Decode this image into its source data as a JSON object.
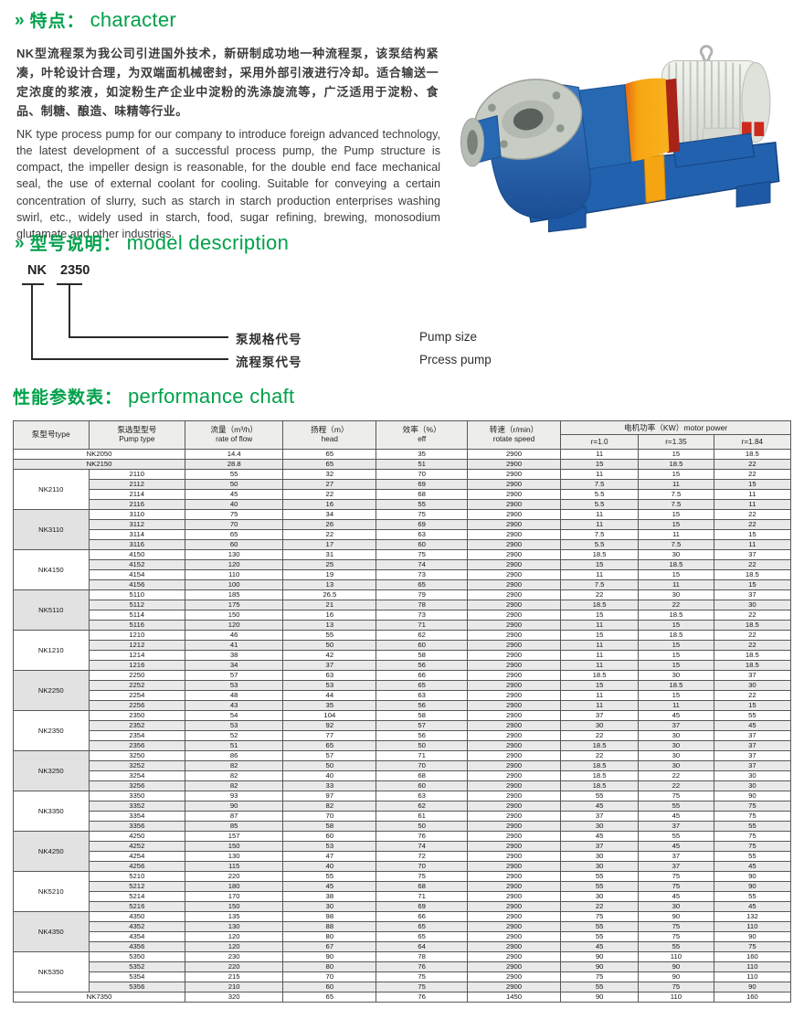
{
  "colors": {
    "accent_green": "#00a14b",
    "pump_blue": "#2565ae",
    "coupling_orange": "#f6a512",
    "motor_body": "#e9ebe6",
    "table_stripe": "#e9e9e9"
  },
  "character": {
    "chevron": "»",
    "title_zh": "特点：",
    "title_en": "character",
    "para_zh": "NK型流程泵为我公司引进国外技术，新研制成功地一种流程泵，该泵结构紧凑，叶轮设计合理，为双端面机械密封，采用外部引液进行冷却。适合输送一定浓度的浆液，如淀粉生产企业中淀粉的洗涤旋流等，广泛适用于淀粉、食品、制糖、酿造、味精等行业。",
    "para_en": "NK type process pump for our company to introduce foreign advanced technology, the latest development of a successful process pump, the Pump structure is compact, the impeller design is reasonable, for the double end face mechanical seal, the use of external coolant for cooling. Suitable for conveying a certain concentration of slurry, such as starch in starch production enterprises washing swirl, etc., widely used in starch, food, sugar refining, brewing, monosodium glutamate and other industries."
  },
  "model": {
    "chevron": "»",
    "title_zh": "型号说明：",
    "title_en": "model description",
    "code_prefix": "NK",
    "code_size": "2350",
    "label1_zh": "泵规格代号",
    "label1_en": "Pump size",
    "label2_zh": "流程泵代号",
    "label2_en": "Prcess pump"
  },
  "performance": {
    "title_zh": "性能参数表：",
    "title_en": "performance chaft",
    "headers": {
      "type": "泵型号type",
      "pump_type_zh": "泵选型型号",
      "pump_type_en": "Pump type",
      "flow_zh": "流量（m³/h）",
      "flow_en": "rate of flow",
      "head_zh": "扬程（m）",
      "head_en": "head",
      "eff_zh": "效率（%）",
      "eff_en": "eff",
      "speed_zh": "转速（r/min）",
      "speed_en": "rotate speed",
      "power_title": "电机功率（KW）motor power",
      "power_cols": [
        "r=1.0",
        "r=1.35",
        "r=1.84"
      ]
    },
    "groups": [
      {
        "name": "NK2050",
        "merged": true,
        "rows": [
          [
            "14.4",
            "65",
            "35",
            "2900",
            "11",
            "15",
            "18.5"
          ]
        ]
      },
      {
        "name": "NK2150",
        "merged": true,
        "rows": [
          [
            "28.8",
            "65",
            "51",
            "2900",
            "15",
            "18.5",
            "22"
          ]
        ]
      },
      {
        "name": "NK2110",
        "rows": [
          [
            "2110",
            "55",
            "32",
            "70",
            "2900",
            "11",
            "15",
            "22"
          ],
          [
            "2112",
            "50",
            "27",
            "69",
            "2900",
            "7.5",
            "11",
            "15"
          ],
          [
            "2114",
            "45",
            "22",
            "68",
            "2900",
            "5.5",
            "7.5",
            "11"
          ],
          [
            "2116",
            "40",
            "16",
            "55",
            "2900",
            "5.5",
            "7.5",
            "11"
          ]
        ]
      },
      {
        "name": "NK3110",
        "rows": [
          [
            "3110",
            "75",
            "34",
            "75",
            "2900",
            "11",
            "15",
            "22"
          ],
          [
            "3112",
            "70",
            "26",
            "69",
            "2900",
            "11",
            "15",
            "22"
          ],
          [
            "3114",
            "65",
            "22",
            "63",
            "2900",
            "7.5",
            "11",
            "15"
          ],
          [
            "3116",
            "60",
            "17",
            "60",
            "2900",
            "5.5",
            "7.5",
            "11"
          ]
        ]
      },
      {
        "name": "NK4150",
        "rows": [
          [
            "4150",
            "130",
            "31",
            "75",
            "2900",
            "18.5",
            "30",
            "37"
          ],
          [
            "4152",
            "120",
            "25",
            "74",
            "2900",
            "15",
            "18.5",
            "22"
          ],
          [
            "4154",
            "110",
            "19",
            "73",
            "2900",
            "11",
            "15",
            "18.5"
          ],
          [
            "4156",
            "100",
            "13",
            "65",
            "2900",
            "7.5",
            "11",
            "15"
          ]
        ]
      },
      {
        "name": "NK5110",
        "rows": [
          [
            "5110",
            "185",
            "26.5",
            "79",
            "2900",
            "22",
            "30",
            "37"
          ],
          [
            "5112",
            "175",
            "21",
            "78",
            "2900",
            "18.5",
            "22",
            "30"
          ],
          [
            "5114",
            "150",
            "16",
            "73",
            "2900",
            "15",
            "18.5",
            "22"
          ],
          [
            "5116",
            "120",
            "13",
            "71",
            "2900",
            "11",
            "15",
            "18.5"
          ]
        ]
      },
      {
        "name": "NK1210",
        "rows": [
          [
            "1210",
            "46",
            "55",
            "62",
            "2900",
            "15",
            "18.5",
            "22"
          ],
          [
            "1212",
            "41",
            "50",
            "60",
            "2900",
            "11",
            "15",
            "22"
          ],
          [
            "1214",
            "38",
            "42",
            "58",
            "2900",
            "11",
            "15",
            "18.5"
          ],
          [
            "1216",
            "34",
            "37",
            "56",
            "2900",
            "11",
            "15",
            "18.5"
          ]
        ]
      },
      {
        "name": "NK2250",
        "rows": [
          [
            "2250",
            "57",
            "63",
            "66",
            "2900",
            "18.5",
            "30",
            "37"
          ],
          [
            "2252",
            "53",
            "53",
            "65",
            "2900",
            "15",
            "18.5",
            "30"
          ],
          [
            "2254",
            "48",
            "44",
            "63",
            "2900",
            "11",
            "15",
            "22"
          ],
          [
            "2256",
            "43",
            "35",
            "56",
            "2900",
            "11",
            "11",
            "15"
          ]
        ]
      },
      {
        "name": "NK2350",
        "rows": [
          [
            "2350",
            "54",
            "104",
            "58",
            "2900",
            "37",
            "45",
            "55"
          ],
          [
            "2352",
            "53",
            "92",
            "57",
            "2900",
            "30",
            "37",
            "45"
          ],
          [
            "2354",
            "52",
            "77",
            "56",
            "2900",
            "22",
            "30",
            "37"
          ],
          [
            "2356",
            "51",
            "65",
            "50",
            "2900",
            "18.5",
            "30",
            "37"
          ]
        ]
      },
      {
        "name": "NK3250",
        "rows": [
          [
            "3250",
            "86",
            "57",
            "71",
            "2900",
            "22",
            "30",
            "37"
          ],
          [
            "3252",
            "82",
            "50",
            "70",
            "2900",
            "18.5",
            "30",
            "37"
          ],
          [
            "3254",
            "82",
            "40",
            "68",
            "2900",
            "18.5",
            "22",
            "30"
          ],
          [
            "3256",
            "82",
            "33",
            "60",
            "2900",
            "18.5",
            "22",
            "30"
          ]
        ]
      },
      {
        "name": "NK3350",
        "rows": [
          [
            "3350",
            "93",
            "97",
            "63",
            "2900",
            "55",
            "75",
            "90"
          ],
          [
            "3352",
            "90",
            "82",
            "62",
            "2900",
            "45",
            "55",
            "75"
          ],
          [
            "3354",
            "87",
            "70",
            "61",
            "2900",
            "37",
            "45",
            "75"
          ],
          [
            "3356",
            "85",
            "58",
            "50",
            "2900",
            "30",
            "37",
            "55"
          ]
        ]
      },
      {
        "name": "NK4250",
        "rows": [
          [
            "4250",
            "157",
            "60",
            "76",
            "2900",
            "45",
            "55",
            "75"
          ],
          [
            "4252",
            "150",
            "53",
            "74",
            "2900",
            "37",
            "45",
            "75"
          ],
          [
            "4254",
            "130",
            "47",
            "72",
            "2900",
            "30",
            "37",
            "55"
          ],
          [
            "4256",
            "115",
            "40",
            "70",
            "2900",
            "30",
            "37",
            "45"
          ]
        ]
      },
      {
        "name": "NK5210",
        "rows": [
          [
            "5210",
            "220",
            "55",
            "75",
            "2900",
            "55",
            "75",
            "90"
          ],
          [
            "5212",
            "180",
            "45",
            "68",
            "2900",
            "55",
            "75",
            "90"
          ],
          [
            "5214",
            "170",
            "38",
            "71",
            "2900",
            "30",
            "45",
            "55"
          ],
          [
            "5216",
            "150",
            "30",
            "69",
            "2900",
            "22",
            "30",
            "45"
          ]
        ]
      },
      {
        "name": "NK4350",
        "rows": [
          [
            "4350",
            "135",
            "98",
            "66",
            "2900",
            "75",
            "90",
            "132"
          ],
          [
            "4352",
            "130",
            "88",
            "65",
            "2900",
            "55",
            "75",
            "110"
          ],
          [
            "4354",
            "120",
            "80",
            "65",
            "2900",
            "55",
            "75",
            "90"
          ],
          [
            "4356",
            "120",
            "67",
            "64",
            "2900",
            "45",
            "55",
            "75"
          ]
        ]
      },
      {
        "name": "NK5350",
        "rows": [
          [
            "5350",
            "230",
            "90",
            "78",
            "2900",
            "90",
            "110",
            "160"
          ],
          [
            "5352",
            "220",
            "80",
            "76",
            "2900",
            "90",
            "90",
            "110"
          ],
          [
            "5354",
            "215",
            "70",
            "75",
            "2900",
            "75",
            "90",
            "110"
          ],
          [
            "5356",
            "210",
            "60",
            "75",
            "2900",
            "55",
            "75",
            "90"
          ]
        ]
      },
      {
        "name": "NK7350",
        "merged": true,
        "rows": [
          [
            "320",
            "65",
            "76",
            "1450",
            "90",
            "110",
            "160"
          ]
        ]
      }
    ]
  }
}
